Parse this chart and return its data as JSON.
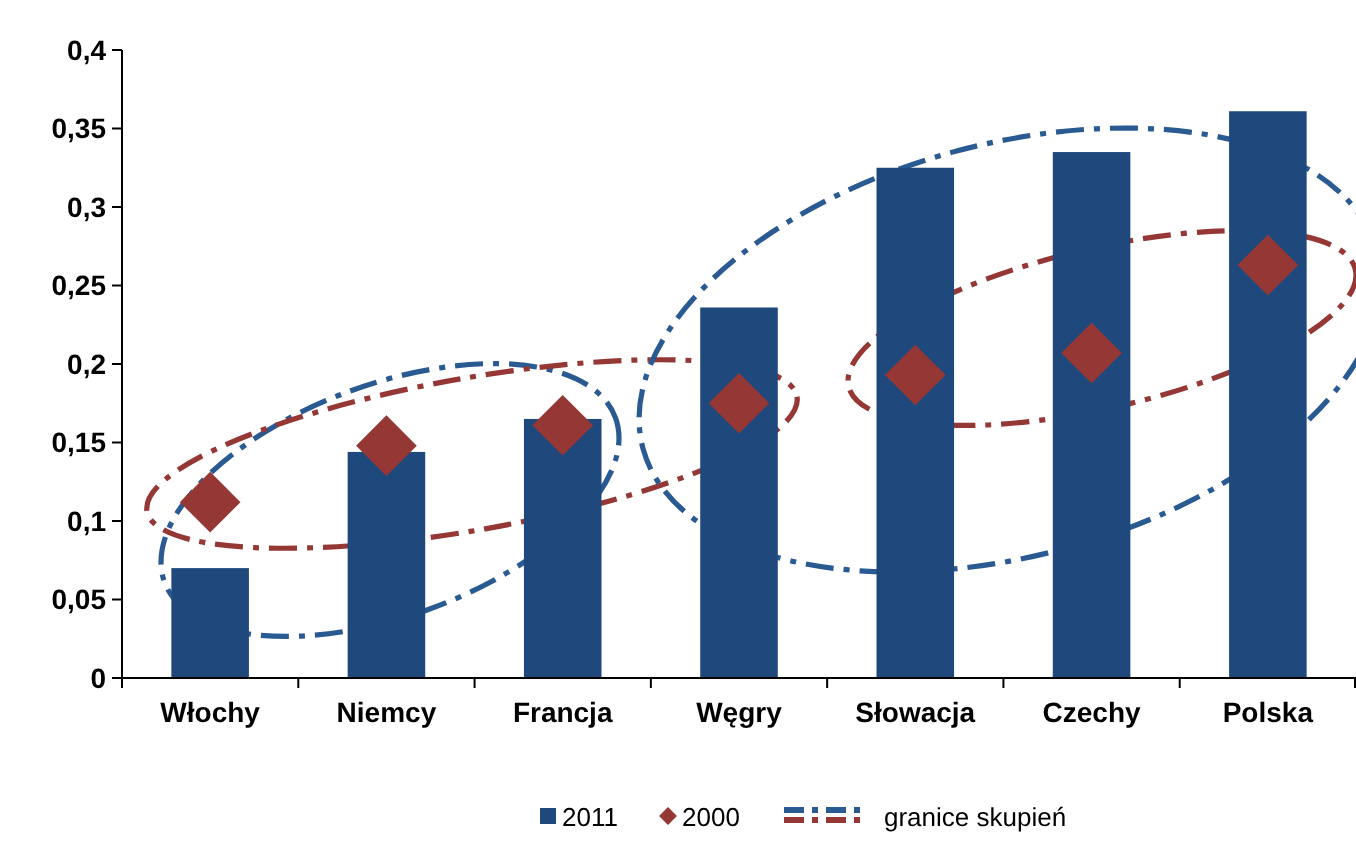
{
  "chart_data": {
    "type": "bar",
    "categories": [
      "Włochy",
      "Niemcy",
      "Francja",
      "Węgry",
      "Słowacja",
      "Czechy",
      "Polska"
    ],
    "series": [
      {
        "name": "2011",
        "color": "#1f497d",
        "values": [
          0.07,
          0.144,
          0.165,
          0.236,
          0.325,
          0.335,
          0.361
        ]
      },
      {
        "name": "2000",
        "type": "scatter",
        "color": "#953735",
        "marker": "diamond",
        "values": [
          0.112,
          0.148,
          0.161,
          0.175,
          0.193,
          0.207,
          0.263
        ]
      }
    ],
    "ylim": [
      0,
      0.4
    ],
    "yticks": [
      {
        "value": 0,
        "label": "0"
      },
      {
        "value": 0.05,
        "label": "0,05"
      },
      {
        "value": 0.1,
        "label": "0,1"
      },
      {
        "value": 0.15,
        "label": "0,15"
      },
      {
        "value": 0.2,
        "label": "0,2"
      },
      {
        "value": 0.25,
        "label": "0,25"
      },
      {
        "value": 0.3,
        "label": "0,3"
      },
      {
        "value": 0.35,
        "label": "0,35"
      },
      {
        "value": 0.4,
        "label": "0,4"
      }
    ],
    "grid": false,
    "legend": "bottom",
    "annotations": [
      "granice skupień"
    ]
  }
}
